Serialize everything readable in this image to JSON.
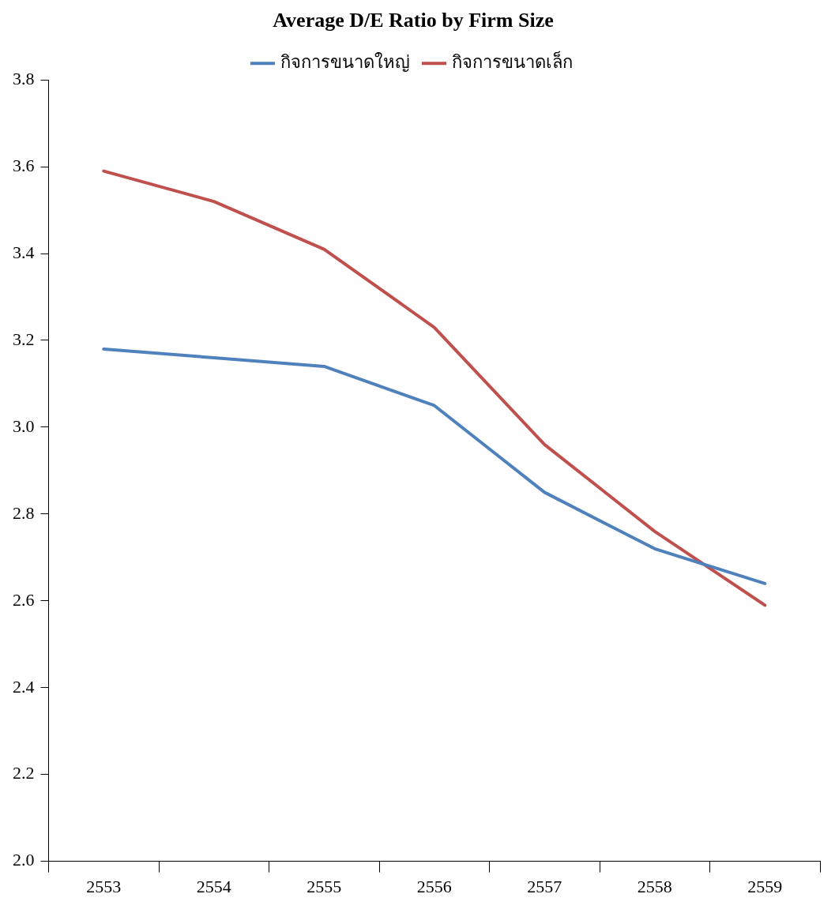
{
  "chart_data": {
    "type": "line",
    "title": "Average D/E Ratio by Firm Size",
    "categories": [
      "2553",
      "2554",
      "2555",
      "2556",
      "2557",
      "2558",
      "2559"
    ],
    "series": [
      {
        "name": "กิจการขนาดใหญ่",
        "color": "#4f81bd",
        "values": [
          3.18,
          3.16,
          3.14,
          3.05,
          2.85,
          2.72,
          2.64
        ]
      },
      {
        "name": "กิจการขนาดเล็ก",
        "color": "#c0504d",
        "values": [
          3.59,
          3.52,
          3.41,
          3.23,
          2.96,
          2.76,
          2.59
        ]
      }
    ],
    "ylim": [
      2.0,
      3.8
    ],
    "yticks": [
      {
        "value": 2.0,
        "label": "2.0"
      },
      {
        "value": 2.2,
        "label": "2.2"
      },
      {
        "value": 2.4,
        "label": "2.4"
      },
      {
        "value": 2.6,
        "label": "2.6"
      },
      {
        "value": 2.8,
        "label": "2.8"
      },
      {
        "value": 3.0,
        "label": "3.0"
      },
      {
        "value": 3.2,
        "label": "3.2"
      },
      {
        "value": 3.4,
        "label": "3.4"
      },
      {
        "value": 3.6,
        "label": "3.6"
      },
      {
        "value": 3.8,
        "label": "3.8"
      }
    ],
    "grid": false,
    "legend": "top",
    "marker": "none",
    "line_style": "solid"
  }
}
